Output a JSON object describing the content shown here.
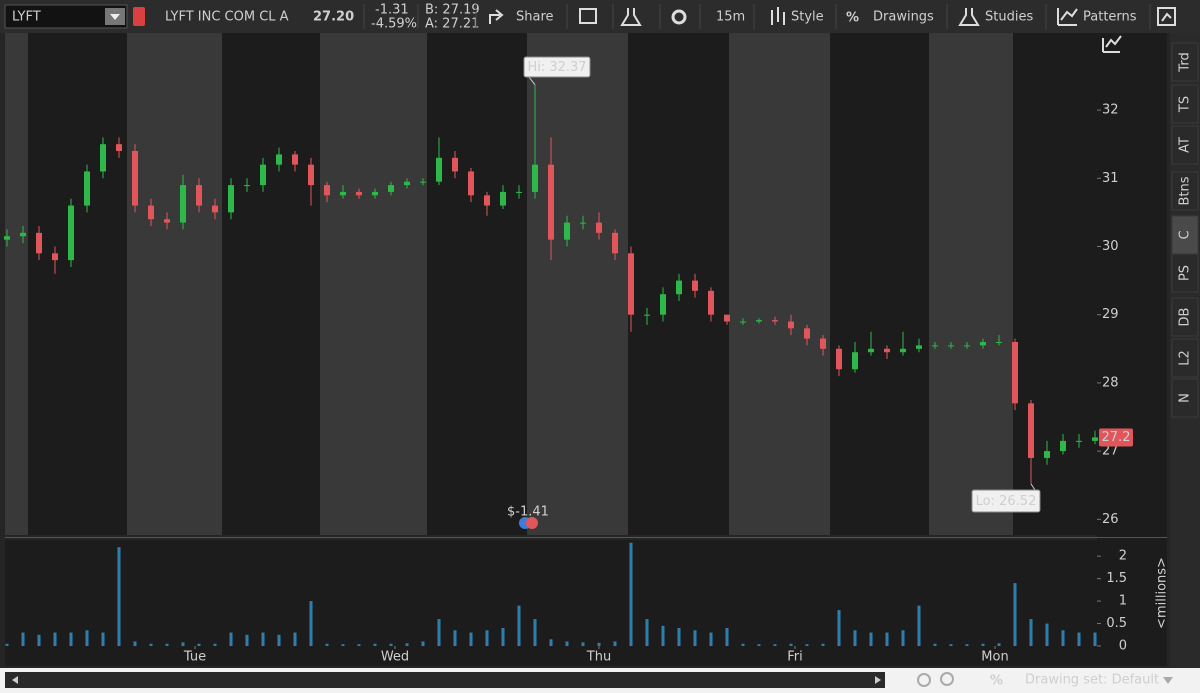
{
  "toolbar": {
    "symbol": "LYFT",
    "company": "LYFT INC COM CL A",
    "last": "27.20",
    "change": "-1.31",
    "change_pct": "-4.59%",
    "bid": "B: 27.19",
    "ask": "A: 27.21",
    "buttons": [
      "Share",
      "15m",
      "Style",
      "Drawings",
      "Studies",
      "Patterns"
    ]
  },
  "side_tabs": [
    "Trd",
    "TS",
    "AT",
    "Btns",
    "C",
    "PS",
    "DB",
    "L2",
    "N"
  ],
  "footer": {
    "drawing_set": "Drawing set: Default"
  },
  "chart_data": [
    {
      "type": "candlestick",
      "hi_label": "Hi: 32.37",
      "lo_label": "Lo: 26.52",
      "event_label": "$-1.41",
      "up_color": "#2fb84a",
      "down_color": "#e0565b",
      "grid": false,
      "xlim": [
        -0.5,
        272.5
      ],
      "ylim": [
        25.77,
        33.13
      ],
      "yticks": [
        26,
        27,
        28,
        29,
        30,
        31,
        32
      ],
      "x": [
        0,
        4,
        8,
        12,
        16,
        20,
        24,
        28,
        32,
        36,
        40,
        44,
        48,
        52,
        56,
        60,
        64,
        68,
        72,
        76,
        80,
        84,
        88,
        92,
        96,
        100,
        104,
        108,
        112,
        116,
        120,
        124,
        128,
        132,
        136,
        140,
        144,
        148,
        152,
        156,
        160,
        164,
        168,
        172,
        176,
        180,
        184,
        188,
        192,
        196,
        200,
        204,
        208,
        212,
        216,
        220,
        224,
        228,
        232,
        236,
        240,
        244,
        248,
        252,
        256,
        260,
        264,
        268,
        272
      ],
      "open": [
        30.1,
        30.15,
        30.2,
        29.9,
        29.8,
        30.6,
        31.1,
        31.5,
        31.4,
        30.6,
        30.4,
        30.35,
        30.9,
        30.6,
        30.5,
        30.9,
        30.9,
        31.2,
        31.35,
        31.2,
        30.9,
        30.75,
        30.8,
        30.75,
        30.8,
        30.9,
        30.95,
        30.95,
        31.3,
        31.1,
        30.75,
        30.6,
        30.8,
        30.8,
        31.2,
        30.1,
        30.35,
        30.35,
        30.2,
        29.9,
        29.0,
        29.0,
        29.3,
        29.5,
        29.35,
        29.0,
        28.9,
        28.9,
        28.92,
        28.9,
        28.8,
        28.65,
        28.5,
        28.2,
        28.45,
        28.5,
        28.45,
        28.5,
        28.55,
        28.55,
        28.55,
        28.55,
        28.6,
        28.6,
        27.7,
        26.9,
        27.0,
        27.15,
        27.15
      ],
      "high": [
        30.25,
        30.3,
        30.3,
        30.0,
        30.7,
        31.2,
        31.6,
        31.6,
        31.5,
        30.7,
        30.5,
        31.05,
        31.0,
        30.7,
        31.0,
        31.0,
        31.3,
        31.45,
        31.4,
        31.3,
        30.95,
        30.9,
        30.85,
        30.85,
        30.95,
        31.0,
        31.0,
        31.6,
        31.4,
        31.15,
        30.8,
        30.9,
        30.9,
        32.37,
        31.6,
        30.45,
        30.45,
        30.5,
        30.25,
        30.0,
        29.1,
        29.4,
        29.6,
        29.6,
        29.4,
        29.0,
        28.95,
        28.95,
        28.97,
        29.0,
        28.85,
        28.7,
        28.55,
        28.6,
        28.75,
        28.55,
        28.75,
        28.65,
        28.6,
        28.6,
        28.6,
        28.65,
        28.7,
        28.65,
        27.75,
        27.15,
        27.25,
        27.25,
        27.3
      ],
      "low": [
        30.0,
        30.05,
        29.8,
        29.6,
        29.7,
        30.5,
        31.0,
        31.3,
        30.5,
        30.3,
        30.25,
        30.25,
        30.5,
        30.4,
        30.4,
        30.8,
        30.8,
        31.1,
        31.1,
        30.6,
        30.65,
        30.7,
        30.7,
        30.7,
        30.75,
        30.85,
        30.9,
        30.9,
        31.0,
        30.65,
        30.45,
        30.55,
        30.7,
        30.7,
        29.8,
        30.0,
        30.25,
        30.1,
        29.8,
        28.75,
        28.85,
        28.9,
        29.2,
        29.25,
        28.9,
        28.85,
        28.85,
        28.87,
        28.85,
        28.7,
        28.55,
        28.4,
        28.1,
        28.15,
        28.4,
        28.35,
        28.4,
        28.45,
        28.5,
        28.5,
        28.5,
        28.5,
        28.55,
        27.6,
        26.52,
        26.8,
        26.95,
        27.05,
        27.1
      ],
      "close": [
        30.15,
        30.2,
        29.9,
        29.8,
        30.6,
        31.1,
        31.5,
        31.4,
        30.6,
        30.4,
        30.35,
        30.9,
        30.6,
        30.5,
        30.9,
        30.9,
        31.2,
        31.35,
        31.2,
        30.9,
        30.75,
        30.8,
        30.75,
        30.8,
        30.9,
        30.95,
        30.95,
        31.3,
        31.1,
        30.75,
        30.6,
        30.8,
        30.8,
        31.2,
        30.1,
        30.35,
        30.35,
        30.2,
        29.9,
        29.0,
        29.0,
        29.3,
        29.5,
        29.35,
        29.0,
        28.9,
        28.9,
        28.92,
        28.9,
        28.8,
        28.65,
        28.5,
        28.2,
        28.45,
        28.5,
        28.45,
        28.5,
        28.55,
        28.55,
        28.55,
        28.55,
        28.6,
        28.6,
        27.7,
        26.9,
        27.0,
        27.15,
        27.15,
        27.2
      ]
    },
    {
      "type": "bar",
      "y2label": "<millions>",
      "color": "#2f7fae",
      "grid": false,
      "xlim": [
        -0.5,
        272.5
      ],
      "ylim": [
        0,
        2.36
      ],
      "yticks": [
        0,
        0.5,
        1,
        1.5,
        2
      ],
      "xticks": [
        {
          "value": 47,
          "label": "Tue"
        },
        {
          "value": 97,
          "label": "Wed"
        },
        {
          "value": 148,
          "label": "Thu"
        },
        {
          "value": 197,
          "label": "Fri"
        },
        {
          "value": 247,
          "label": "Mon"
        }
      ],
      "x": [
        0,
        4,
        8,
        12,
        16,
        20,
        24,
        28,
        32,
        36,
        40,
        44,
        48,
        52,
        56,
        60,
        64,
        68,
        72,
        76,
        80,
        84,
        88,
        92,
        96,
        100,
        104,
        108,
        112,
        116,
        120,
        124,
        128,
        132,
        136,
        140,
        144,
        148,
        152,
        156,
        160,
        164,
        168,
        172,
        176,
        180,
        184,
        188,
        192,
        196,
        200,
        204,
        208,
        212,
        216,
        220,
        224,
        228,
        232,
        236,
        240,
        244,
        248,
        252,
        256,
        260,
        264,
        268,
        272
      ],
      "values": [
        0.05,
        0.3,
        0.25,
        0.3,
        0.3,
        0.35,
        0.3,
        2.2,
        0.1,
        0.05,
        0.05,
        0.08,
        0.05,
        0.05,
        0.3,
        0.25,
        0.3,
        0.25,
        0.3,
        1.0,
        0.05,
        0.04,
        0.04,
        0.05,
        0.05,
        0.06,
        0.1,
        0.6,
        0.35,
        0.3,
        0.35,
        0.4,
        0.9,
        0.6,
        0.15,
        0.1,
        0.08,
        0.07,
        0.1,
        2.3,
        0.6,
        0.45,
        0.4,
        0.35,
        0.3,
        0.4,
        0.05,
        0.04,
        0.04,
        0.05,
        0.04,
        0.05,
        0.8,
        0.35,
        0.3,
        0.3,
        0.35,
        0.9,
        0.05,
        0.04,
        0.04,
        0.05,
        0.06,
        1.4,
        0.6,
        0.5,
        0.35,
        0.3,
        0.3
      ]
    }
  ]
}
